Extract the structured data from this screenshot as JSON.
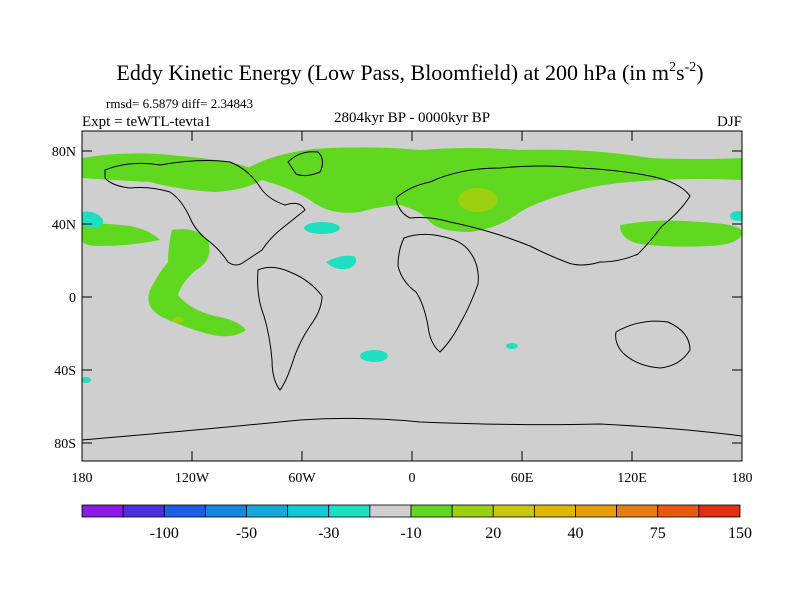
{
  "title": {
    "main": "Eddy Kinetic Energy (Low Pass, Bloomfield) at 200 hPa (in m",
    "sup1": "2",
    "mid": "s",
    "sup2": "-2",
    "close": ")"
  },
  "stats": "rmsd= 6.5879 diff= 2.34843",
  "expt": "Expt = teWTL-tevta1",
  "period": "2804kyr BP - 0000kyr BP",
  "season": "DJF",
  "lat_ticks": [
    "80N",
    "40N",
    "0",
    "40S",
    "80S"
  ],
  "lon_ticks": [
    "180",
    "120W",
    "60W",
    "0",
    "60E",
    "120E",
    "180"
  ],
  "colorbar": {
    "colors": [
      "#8b1ae6",
      "#4d2ee0",
      "#1e5ee6",
      "#1487e0",
      "#13a9dc",
      "#10c8d6",
      "#1ee0c0",
      "#cfcfcf",
      "#60d820",
      "#9ad010",
      "#c8c808",
      "#e0b800",
      "#e89c08",
      "#e87c10",
      "#e85a10",
      "#e03010"
    ],
    "labels": [
      "-100",
      "-50",
      "-30",
      "-10",
      "20",
      "40",
      "75",
      "150"
    ]
  },
  "colors": {
    "land_ocean": "#cfcfcf",
    "positive": "#60d820",
    "positive_strong": "#9ad010",
    "negative": "#1ee0c0"
  }
}
